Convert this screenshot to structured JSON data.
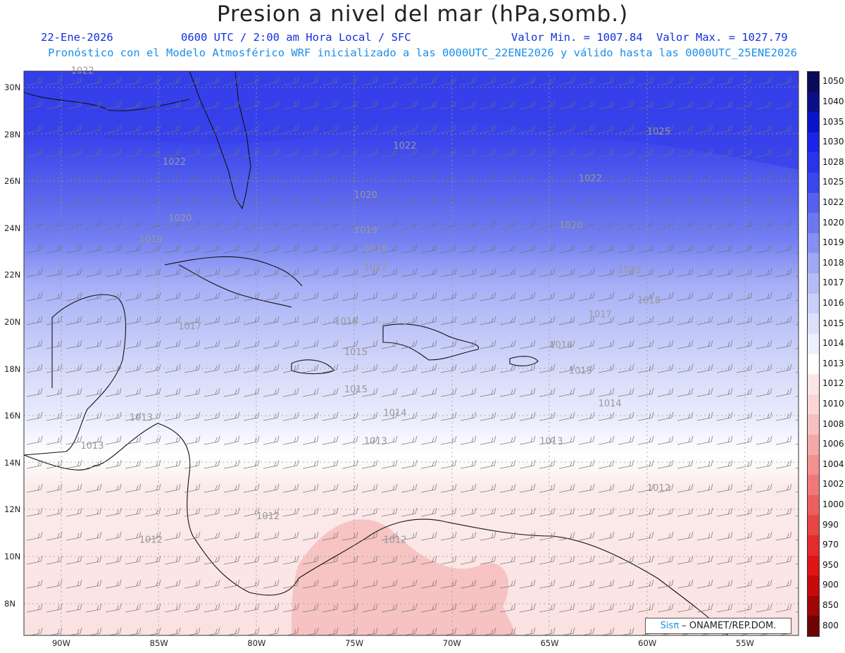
{
  "header": {
    "title": "Presion a nivel del mar (hPa,somb.)",
    "date": "22-Ene-2026",
    "time_info": "0600 UTC / 2:00 am Hora Local / SFC",
    "min_value": "Valor Min. = 1007.84",
    "max_value": "Valor Max. = 1027.79",
    "model_info": "Pronóstico con el Modelo Atmosférico WRF inicializado a las 0000UTC_22ENE2026 y válido hasta las  0000UTC_25ENE2026"
  },
  "credit": {
    "brand": "Sisπ",
    "text": " – ONAMET/REP.DOM."
  },
  "colorbar": {
    "levels": [
      "1050",
      "1040",
      "1035",
      "1030",
      "1028",
      "1025",
      "1022",
      "1020",
      "1019",
      "1018",
      "1017",
      "1016",
      "1015",
      "1014",
      "1013",
      "1012",
      "1010",
      "1008",
      "1006",
      "1004",
      "1002",
      "1000",
      "990",
      "970",
      "950",
      "900",
      "850",
      "800"
    ],
    "colors": [
      "#0a0a5a",
      "#0b0f8a",
      "#0a14c8",
      "#1a24e6",
      "#2a33ea",
      "#3a45ec",
      "#5560ee",
      "#6c78f0",
      "#8590f2",
      "#9ea8f5",
      "#b4bcf7",
      "#cacff9",
      "#dde0fb",
      "#eef0fd",
      "#ffffff",
      "#fde6e6",
      "#fbd6d6",
      "#f8c0c0",
      "#f5a8a8",
      "#f39090",
      "#f07878",
      "#ec5f5f",
      "#e84545",
      "#e42a2a",
      "#e01414",
      "#c80a0a",
      "#a00606",
      "#700404"
    ]
  },
  "axes": {
    "lat_labels": [
      "30N",
      "28N",
      "26N",
      "24N",
      "22N",
      "20N",
      "18N",
      "16N",
      "14N",
      "12N",
      "10N",
      "8N"
    ],
    "lon_labels": [
      "90W",
      "85W",
      "80W",
      "75W",
      "70W",
      "65W",
      "60W",
      "55W"
    ]
  },
  "contour_labels": [
    {
      "text": "1022",
      "lon": -89.5,
      "lat": 30.6
    },
    {
      "text": "1025",
      "lon": -60.0,
      "lat": 28.0
    },
    {
      "text": "1022",
      "lon": -73.0,
      "lat": 27.4
    },
    {
      "text": "1022",
      "lon": -84.8,
      "lat": 26.7
    },
    {
      "text": "1022",
      "lon": -63.5,
      "lat": 26.0
    },
    {
      "text": "1020",
      "lon": -75.0,
      "lat": 25.3
    },
    {
      "text": "1020",
      "lon": -84.5,
      "lat": 24.3
    },
    {
      "text": "1020",
      "lon": -64.5,
      "lat": 24.0
    },
    {
      "text": "1019",
      "lon": -86.0,
      "lat": 23.4
    },
    {
      "text": "1019",
      "lon": -75.0,
      "lat": 23.8
    },
    {
      "text": "1018",
      "lon": -74.5,
      "lat": 23.0
    },
    {
      "text": "1017",
      "lon": -74.5,
      "lat": 22.2
    },
    {
      "text": "1019",
      "lon": -61.5,
      "lat": 22.1
    },
    {
      "text": "1018",
      "lon": -60.5,
      "lat": 20.8
    },
    {
      "text": "1017",
      "lon": -84.0,
      "lat": 19.7
    },
    {
      "text": "1016",
      "lon": -76.0,
      "lat": 19.9
    },
    {
      "text": "1017",
      "lon": -63.0,
      "lat": 20.2
    },
    {
      "text": "1016",
      "lon": -65.0,
      "lat": 18.9
    },
    {
      "text": "1015",
      "lon": -75.5,
      "lat": 18.6
    },
    {
      "text": "1015",
      "lon": -64.0,
      "lat": 17.8
    },
    {
      "text": "1015",
      "lon": -75.5,
      "lat": 17.0
    },
    {
      "text": "1014",
      "lon": -62.5,
      "lat": 16.4
    },
    {
      "text": "1014",
      "lon": -73.5,
      "lat": 16.0
    },
    {
      "text": "1013",
      "lon": -86.5,
      "lat": 15.8
    },
    {
      "text": "1013",
      "lon": -89.0,
      "lat": 14.6
    },
    {
      "text": "1013",
      "lon": -74.5,
      "lat": 14.8
    },
    {
      "text": "1013",
      "lon": -65.5,
      "lat": 14.8
    },
    {
      "text": "1012",
      "lon": -60.0,
      "lat": 12.8
    },
    {
      "text": "1012",
      "lon": -80.0,
      "lat": 11.6
    },
    {
      "text": "1012",
      "lon": -86.0,
      "lat": 10.6
    },
    {
      "text": "1012",
      "lon": -73.5,
      "lat": 10.6
    }
  ]
}
